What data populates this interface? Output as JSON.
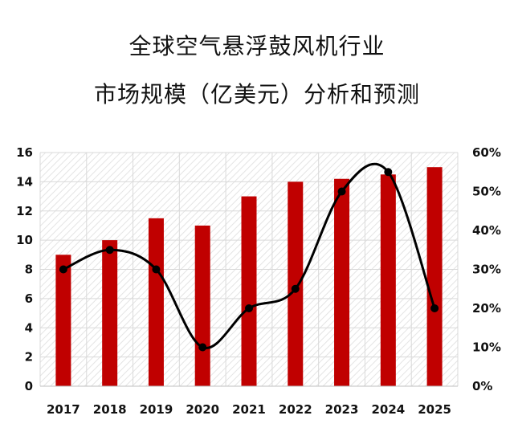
{
  "title_lines": [
    "全球空气悬浮鼓风机行业",
    "市场规模（亿美元）分析和预测"
  ],
  "chart_data": {
    "type": "bar",
    "categories": [
      "2017",
      "2018",
      "2019",
      "2020",
      "2021",
      "2022",
      "2023",
      "2024",
      "2025"
    ],
    "series": [
      {
        "type": "bar",
        "axis": "left",
        "values": [
          9,
          10,
          11.5,
          11,
          13,
          14,
          14.2,
          14.5,
          15
        ]
      },
      {
        "type": "line",
        "axis": "right",
        "values": [
          30,
          35,
          30,
          10,
          20,
          25,
          50,
          55,
          20
        ]
      }
    ],
    "left_axis": {
      "min": 0,
      "max": 16,
      "ticks": [
        "0",
        "2",
        "4",
        "6",
        "8",
        "10",
        "12",
        "14",
        "16"
      ]
    },
    "right_axis": {
      "min": 0,
      "max": 60,
      "ticks": [
        "0%",
        "10%",
        "20%",
        "30%",
        "40%",
        "50%",
        "60%"
      ]
    },
    "grid": true,
    "colors": {
      "bar": "#c00000",
      "line": "#000000",
      "grid": "#d9d9d9"
    }
  }
}
